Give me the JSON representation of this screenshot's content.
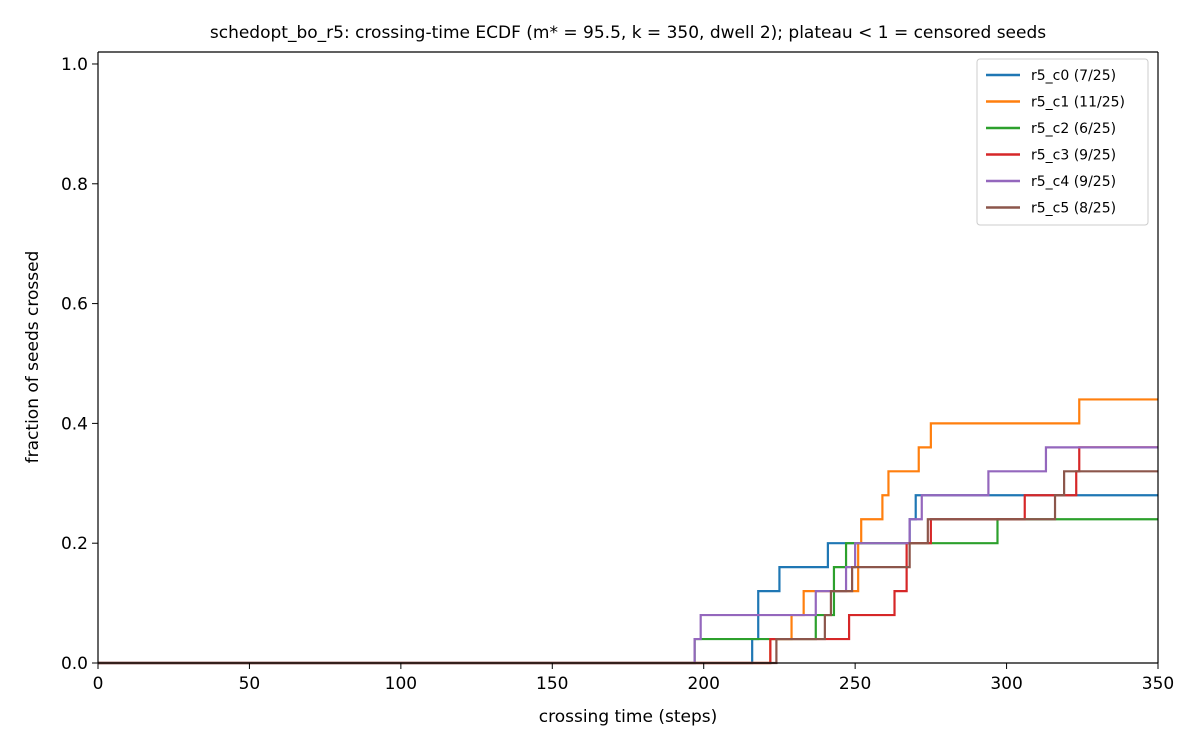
{
  "chart_data": {
    "type": "line",
    "step": "post",
    "title": "schedopt_bo_r5: crossing-time ECDF (m* = 95.5, k = 350, dwell 2); plateau < 1 = censored seeds",
    "xlabel": "crossing time (steps)",
    "ylabel": "fraction of seeds crossed",
    "xlim": [
      0,
      350
    ],
    "ylim": [
      0,
      1.02
    ],
    "xticks": [
      0,
      50,
      100,
      150,
      200,
      250,
      300,
      350
    ],
    "yticks": [
      0.0,
      0.2,
      0.4,
      0.6,
      0.8,
      1.0
    ],
    "xtick_labels": [
      "0",
      "50",
      "100",
      "150",
      "200",
      "250",
      "300",
      "350"
    ],
    "ytick_labels": [
      "0.0",
      "0.2",
      "0.4",
      "0.6",
      "0.8",
      "1.0"
    ],
    "grid": false,
    "legend_position": "top-right",
    "series": [
      {
        "name": "r5_c0 (7/25)",
        "color": "#1f77b4",
        "x": [
          216,
          218,
          225,
          241,
          268,
          270,
          350
        ],
        "y": [
          0.04,
          0.12,
          0.16,
          0.2,
          0.24,
          0.28,
          0.28
        ]
      },
      {
        "name": "r5_c1 (11/25)",
        "color": "#ff7f0e",
        "x": [
          222,
          229,
          233,
          251,
          252,
          259,
          260,
          261,
          271,
          275,
          324,
          350
        ],
        "y": [
          0.04,
          0.08,
          0.12,
          0.2,
          0.24,
          0.28,
          0.28,
          0.32,
          0.36,
          0.4,
          0.44,
          0.44
        ]
      },
      {
        "name": "r5_c2 (6/25)",
        "color": "#2ca02c",
        "x": [
          197,
          237,
          243,
          247,
          274,
          297,
          350
        ],
        "y": [
          0.04,
          0.08,
          0.16,
          0.2,
          0.2,
          0.24,
          0.24
        ]
      },
      {
        "name": "r5_c3 (9/25)",
        "color": "#d62728",
        "x": [
          222,
          248,
          263,
          267,
          275,
          306,
          323,
          324,
          350
        ],
        "y": [
          0.04,
          0.08,
          0.12,
          0.2,
          0.24,
          0.28,
          0.32,
          0.36,
          0.36
        ]
      },
      {
        "name": "r5_c4 (9/25)",
        "color": "#9467bd",
        "x": [
          197,
          199,
          237,
          247,
          250,
          268,
          272,
          294,
          313,
          350
        ],
        "y": [
          0.04,
          0.08,
          0.12,
          0.16,
          0.2,
          0.24,
          0.28,
          0.32,
          0.36,
          0.36
        ]
      },
      {
        "name": "r5_c5 (8/25)",
        "color": "#8c564b",
        "x": [
          224,
          240,
          242,
          249,
          268,
          274,
          316,
          319,
          350
        ],
        "y": [
          0.04,
          0.08,
          0.12,
          0.16,
          0.2,
          0.24,
          0.28,
          0.32,
          0.32
        ]
      }
    ]
  }
}
